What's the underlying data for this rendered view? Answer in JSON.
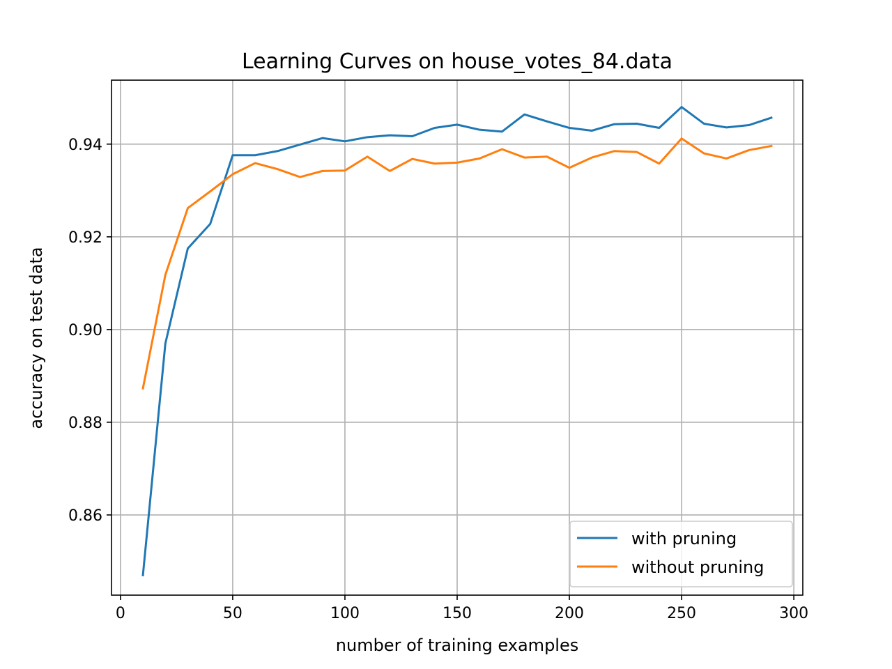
{
  "chart_data": {
    "type": "line",
    "title": "Learning Curves on house_votes_84.data",
    "xlabel": "number of training examples",
    "ylabel": "accuracy on test data",
    "xlim": [
      -4,
      304
    ],
    "ylim": [
      0.8427,
      0.9538
    ],
    "xticks": [
      0,
      50,
      100,
      150,
      200,
      250,
      300
    ],
    "yticks": [
      0.86,
      0.88,
      0.9,
      0.92,
      0.94
    ],
    "xtick_labels": [
      "0",
      "50",
      "100",
      "150",
      "200",
      "250",
      "300"
    ],
    "ytick_labels": [
      "0.86",
      "0.88",
      "0.90",
      "0.92",
      "0.94"
    ],
    "grid": true,
    "legend_position": "lower-right",
    "x": [
      10,
      20,
      30,
      40,
      50,
      60,
      70,
      80,
      90,
      100,
      110,
      120,
      130,
      140,
      150,
      160,
      170,
      180,
      190,
      200,
      210,
      220,
      230,
      240,
      250,
      260,
      270,
      280,
      290
    ],
    "series": [
      {
        "name": "with pruning",
        "color": "#1f77b4",
        "values": [
          0.847,
          0.897,
          0.9175,
          0.9228,
          0.9376,
          0.9376,
          0.9385,
          0.9399,
          0.9413,
          0.9406,
          0.9415,
          0.9419,
          0.9417,
          0.9435,
          0.9442,
          0.9431,
          0.9427,
          0.9464,
          0.9449,
          0.9435,
          0.9429,
          0.9443,
          0.9444,
          0.9435,
          0.948,
          0.9444,
          0.9436,
          0.9441,
          0.9457
        ]
      },
      {
        "name": "without pruning",
        "color": "#ff7f0e",
        "values": [
          0.8873,
          0.9118,
          0.9262,
          0.9298,
          0.9335,
          0.9359,
          0.9346,
          0.9329,
          0.9342,
          0.9343,
          0.9373,
          0.9342,
          0.9368,
          0.9358,
          0.936,
          0.9369,
          0.9389,
          0.9371,
          0.9373,
          0.9349,
          0.9371,
          0.9385,
          0.9383,
          0.9358,
          0.9412,
          0.938,
          0.9369,
          0.9387,
          0.9396
        ]
      }
    ]
  }
}
